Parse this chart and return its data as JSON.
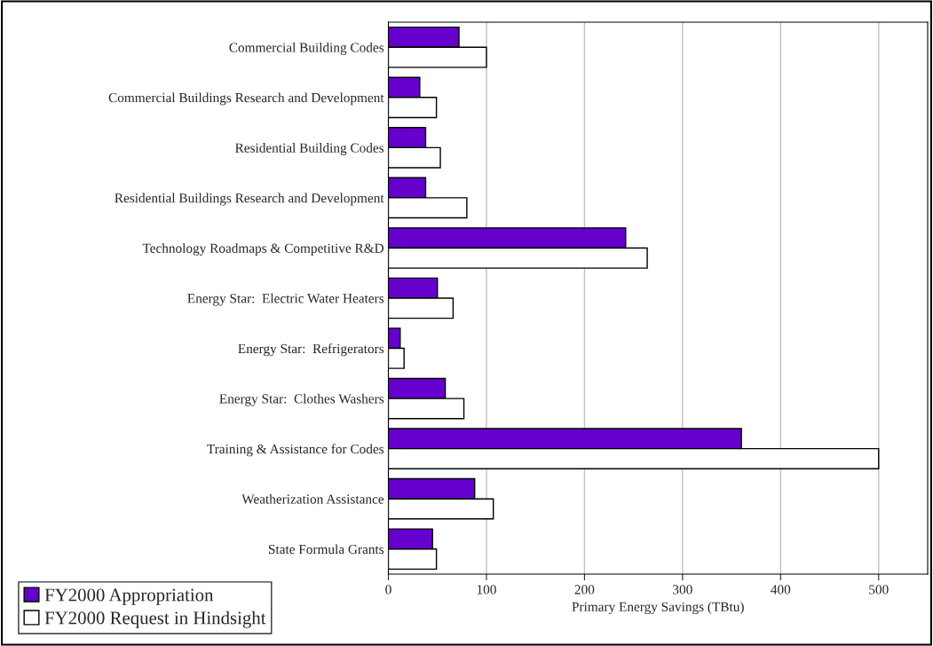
{
  "chart_data": {
    "type": "bar",
    "orientation": "horizontal",
    "categories": [
      "Commercial Building Codes",
      "Commercial Buildings Research and Development",
      "Residential Building Codes",
      "Residential Buildings Research and Development",
      "Technology Roadmaps & Competitive R&D",
      "Energy Star:  Electric Water Heaters",
      "Energy Star:  Refrigerators",
      "Energy Star:  Clothes Washers",
      "Training & Assistance for Codes",
      "Weatherization Assistance",
      "State Formula Grants"
    ],
    "series": [
      {
        "name": "FY2000 Appropriation",
        "color": "#6600cc",
        "values": [
          72,
          32,
          38,
          38,
          242,
          50,
          12,
          58,
          360,
          88,
          45
        ]
      },
      {
        "name": "FY2000 Request in Hindsight",
        "color": "#ffffff",
        "values": [
          100,
          49,
          53,
          80,
          264,
          66,
          16,
          77,
          500,
          107,
          49
        ]
      }
    ],
    "xlabel": "Primary Energy Savings (TBtu)",
    "xlim": [
      0,
      550
    ],
    "xticks": [
      0,
      100,
      200,
      300,
      400,
      500
    ],
    "grid": "x",
    "legend": "bottom left"
  }
}
